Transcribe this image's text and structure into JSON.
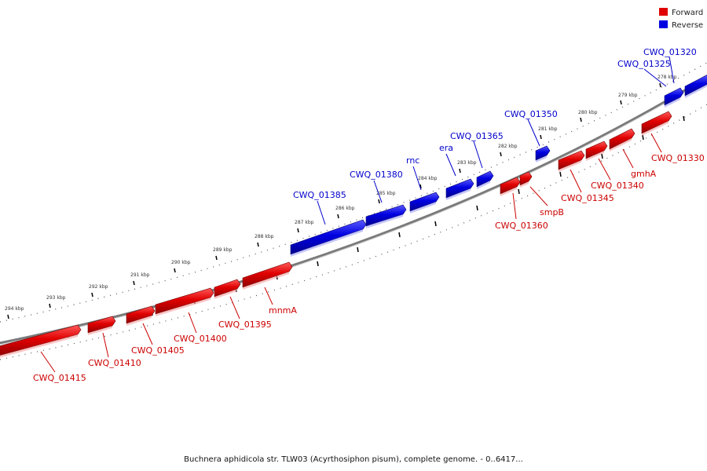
{
  "legend": [
    {
      "label": "Forward",
      "color": "#e00000"
    },
    {
      "label": "Reverse",
      "color": "#0000e0"
    }
  ],
  "colors": {
    "forward": "#e00000",
    "reverse": "#0000e0",
    "forward_label": "#cc0000",
    "reverse_label": "#0000cc",
    "backbone": "#888888",
    "ticks": "#000000"
  },
  "caption": "Buchnera aphidicola str. TLW03 (Acyrthosiphon pisum), complete genome. - 0..6417...",
  "kbp_ticks": [
    "278 kbp",
    "279 kbp",
    "280 kbp",
    "281 kbp",
    "282 kbp",
    "283 kbp",
    "284 kbp",
    "285 kbp",
    "286 kbp",
    "287 kbp",
    "288 kbp",
    "289 kbp",
    "290 kbp",
    "291 kbp",
    "292 kbp",
    "293 kbp",
    "294 kbp"
  ],
  "genes": [
    {
      "name": "CWQ_01320",
      "strand": "reverse"
    },
    {
      "name": "CWQ_01325",
      "strand": "reverse"
    },
    {
      "name": "CWQ_01350",
      "strand": "reverse"
    },
    {
      "name": "CWQ_01365",
      "strand": "reverse"
    },
    {
      "name": "era",
      "strand": "reverse"
    },
    {
      "name": "rnc",
      "strand": "reverse"
    },
    {
      "name": "CWQ_01380",
      "strand": "reverse"
    },
    {
      "name": "CWQ_01385",
      "strand": "reverse"
    },
    {
      "name": "CWQ_01330",
      "strand": "forward"
    },
    {
      "name": "gmhA",
      "strand": "forward"
    },
    {
      "name": "CWQ_01340",
      "strand": "forward"
    },
    {
      "name": "CWQ_01345",
      "strand": "forward"
    },
    {
      "name": "smpB",
      "strand": "forward"
    },
    {
      "name": "CWQ_01360",
      "strand": "forward"
    },
    {
      "name": "mnmA",
      "strand": "forward"
    },
    {
      "name": "CWQ_01395",
      "strand": "forward"
    },
    {
      "name": "CWQ_01400",
      "strand": "forward"
    },
    {
      "name": "CWQ_01405",
      "strand": "forward"
    },
    {
      "name": "CWQ_01410",
      "strand": "forward"
    },
    {
      "name": "CWQ_01415",
      "strand": "forward"
    }
  ]
}
